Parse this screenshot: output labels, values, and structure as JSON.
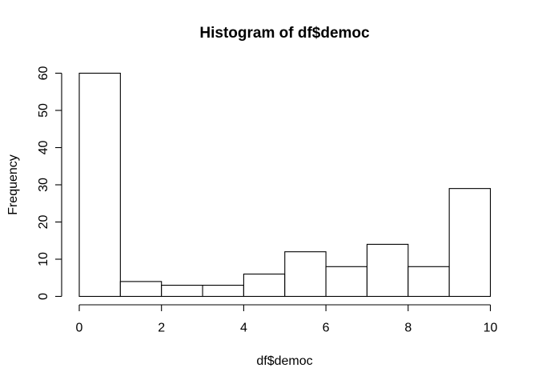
{
  "chart_data": {
    "type": "bar",
    "subtype": "histogram",
    "title": "Histogram of df$democ",
    "xlabel": "df$democ",
    "ylabel": "Frequency",
    "bin_edges": [
      0,
      1,
      2,
      3,
      4,
      5,
      6,
      7,
      8,
      9,
      10
    ],
    "values": [
      60,
      4,
      3,
      3,
      6,
      12,
      8,
      14,
      8,
      29
    ],
    "xticks": [
      0,
      2,
      4,
      6,
      8,
      10
    ],
    "yticks": [
      0,
      10,
      20,
      30,
      40,
      50,
      60
    ],
    "xlim": [
      0,
      10
    ],
    "ylim": [
      0,
      60
    ],
    "grid": false,
    "legend_position": "none",
    "colors": {
      "bar_fill": "#ffffff",
      "line": "#000000",
      "background": "#ffffff"
    }
  }
}
